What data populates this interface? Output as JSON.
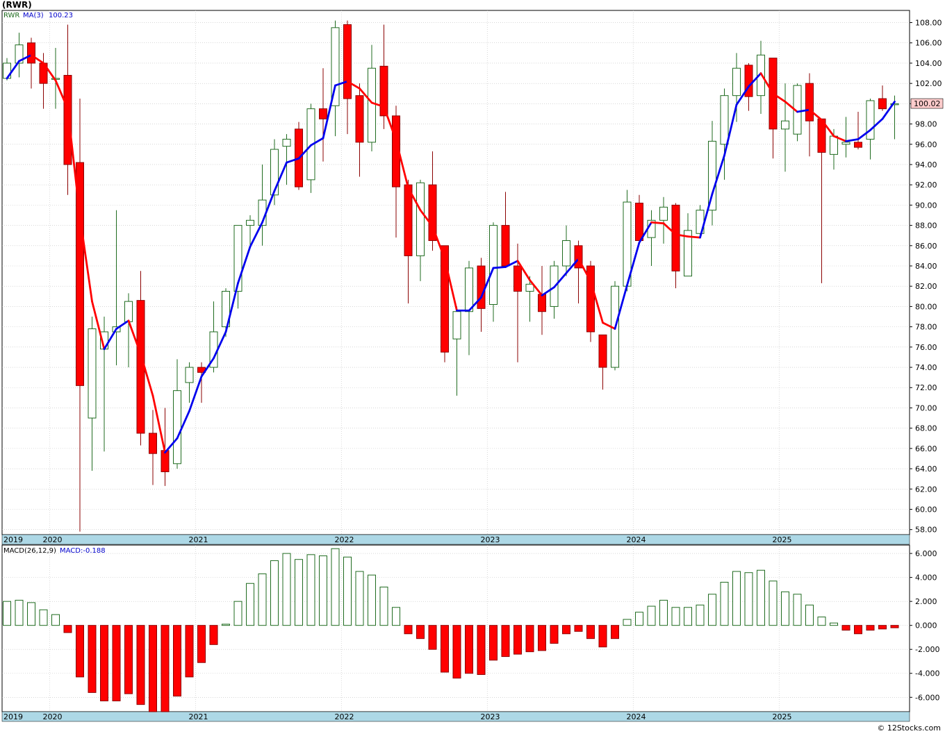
{
  "header": {
    "symbol": "(RWR)"
  },
  "footer": {
    "credit": "© 12Stocks.com"
  },
  "colors": {
    "up": "#1f6b1f",
    "down": "#ff0000",
    "ma_down": "#ff0000",
    "ma_up": "#0000ee",
    "axis_band": "#add8e6",
    "grid": "#bfbfbf",
    "last_price_bg": "#ffcccc"
  },
  "chart_data": [
    {
      "type": "candlestick",
      "legend": {
        "symbol": "RWR",
        "ma_label": "MA(3)",
        "ma_value": "100.23"
      },
      "last_price_label": "100.02",
      "ylim": [
        57.5,
        109.2
      ],
      "yticks": [
        "58.00",
        "60.00",
        "62.00",
        "64.00",
        "66.00",
        "68.00",
        "70.00",
        "72.00",
        "74.00",
        "76.00",
        "78.00",
        "80.00",
        "82.00",
        "84.00",
        "86.00",
        "88.00",
        "90.00",
        "92.00",
        "94.00",
        "96.00",
        "98.00",
        "100.00",
        "102.00",
        "104.00",
        "106.00",
        "108.00"
      ],
      "year_labels": [
        "2019",
        "2020",
        "2021",
        "2022",
        "2023",
        "2024",
        "2025"
      ],
      "year_label_index": [
        -0.5,
        3.4,
        15.4,
        27.4,
        39.4,
        51.4,
        63.4
      ],
      "year_lines_index": [
        3.5,
        15.5,
        27.5,
        39.5,
        51.5,
        63.5
      ],
      "grid": true,
      "candles": [
        {
          "o": 102.5,
          "h": 104.5,
          "l": 102.3,
          "c": 104.0
        },
        {
          "o": 104.0,
          "h": 107.0,
          "l": 102.6,
          "c": 105.8
        },
        {
          "o": 106.0,
          "h": 106.5,
          "l": 101.5,
          "c": 104.0
        },
        {
          "o": 104.0,
          "h": 105.0,
          "l": 99.5,
          "c": 102.0
        },
        {
          "o": 102.5,
          "h": 105.5,
          "l": 99.5,
          "c": 102.5
        },
        {
          "o": 102.8,
          "h": 107.8,
          "l": 91.0,
          "c": 94.0
        },
        {
          "o": 94.2,
          "h": 100.5,
          "l": 57.8,
          "c": 72.2
        },
        {
          "o": 69.0,
          "h": 79.0,
          "l": 63.8,
          "c": 77.8
        },
        {
          "o": 75.8,
          "h": 79.0,
          "l": 65.7,
          "c": 77.5
        },
        {
          "o": 77.5,
          "h": 89.5,
          "l": 74.2,
          "c": 78.0
        },
        {
          "o": 78.5,
          "h": 81.3,
          "l": 74.0,
          "c": 80.5
        },
        {
          "o": 80.6,
          "h": 83.5,
          "l": 66.3,
          "c": 67.5
        },
        {
          "o": 67.5,
          "h": 69.8,
          "l": 62.4,
          "c": 65.5
        },
        {
          "o": 65.8,
          "h": 70.0,
          "l": 62.3,
          "c": 63.7
        },
        {
          "o": 64.5,
          "h": 74.8,
          "l": 64.0,
          "c": 71.7
        },
        {
          "o": 72.5,
          "h": 74.5,
          "l": 70.5,
          "c": 74.0
        },
        {
          "o": 74.0,
          "h": 74.5,
          "l": 70.5,
          "c": 73.5
        },
        {
          "o": 74.0,
          "h": 80.5,
          "l": 73.5,
          "c": 77.5
        },
        {
          "o": 78.0,
          "h": 81.8,
          "l": 77.0,
          "c": 81.5
        },
        {
          "o": 81.5,
          "h": 88.0,
          "l": 79.8,
          "c": 88.0
        },
        {
          "o": 88.0,
          "h": 89.0,
          "l": 86.0,
          "c": 88.5
        },
        {
          "o": 88.0,
          "h": 94.0,
          "l": 86.0,
          "c": 90.5
        },
        {
          "o": 91.0,
          "h": 96.5,
          "l": 90.0,
          "c": 95.5
        },
        {
          "o": 95.8,
          "h": 97.0,
          "l": 92.0,
          "c": 96.5
        },
        {
          "o": 97.5,
          "h": 98.2,
          "l": 91.5,
          "c": 91.8
        },
        {
          "o": 92.5,
          "h": 100.0,
          "l": 91.2,
          "c": 99.5
        },
        {
          "o": 99.5,
          "h": 103.5,
          "l": 94.3,
          "c": 98.5
        },
        {
          "o": 99.8,
          "h": 108.2,
          "l": 96.8,
          "c": 107.5
        },
        {
          "o": 107.8,
          "h": 108.2,
          "l": 97.0,
          "c": 100.5
        },
        {
          "o": 100.8,
          "h": 102.0,
          "l": 92.8,
          "c": 96.2
        },
        {
          "o": 96.2,
          "h": 105.8,
          "l": 95.3,
          "c": 103.5
        },
        {
          "o": 103.7,
          "h": 107.8,
          "l": 97.5,
          "c": 98.8
        },
        {
          "o": 98.8,
          "h": 99.8,
          "l": 86.8,
          "c": 91.8
        },
        {
          "o": 92.0,
          "h": 92.5,
          "l": 80.3,
          "c": 85.0
        },
        {
          "o": 85.0,
          "h": 92.5,
          "l": 82.5,
          "c": 92.2
        },
        {
          "o": 92.0,
          "h": 95.3,
          "l": 85.5,
          "c": 86.5
        },
        {
          "o": 86.0,
          "h": 86.0,
          "l": 74.5,
          "c": 75.5
        },
        {
          "o": 76.8,
          "h": 80.0,
          "l": 71.2,
          "c": 79.5
        },
        {
          "o": 79.5,
          "h": 84.5,
          "l": 75.2,
          "c": 83.8
        },
        {
          "o": 84.0,
          "h": 84.8,
          "l": 77.5,
          "c": 79.8
        },
        {
          "o": 80.2,
          "h": 88.3,
          "l": 78.5,
          "c": 88.0
        },
        {
          "o": 88.0,
          "h": 91.3,
          "l": 83.8,
          "c": 84.0
        },
        {
          "o": 84.0,
          "h": 86.2,
          "l": 74.5,
          "c": 81.5
        },
        {
          "o": 81.5,
          "h": 83.0,
          "l": 78.5,
          "c": 82.2
        },
        {
          "o": 81.2,
          "h": 84.0,
          "l": 77.2,
          "c": 79.5
        },
        {
          "o": 80.0,
          "h": 84.5,
          "l": 78.8,
          "c": 84.0
        },
        {
          "o": 84.0,
          "h": 88.0,
          "l": 83.0,
          "c": 86.5
        },
        {
          "o": 86.0,
          "h": 86.5,
          "l": 80.3,
          "c": 83.8
        },
        {
          "o": 84.0,
          "h": 84.5,
          "l": 76.5,
          "c": 77.5
        },
        {
          "o": 77.2,
          "h": 77.2,
          "l": 71.8,
          "c": 74.0
        },
        {
          "o": 74.0,
          "h": 82.5,
          "l": 73.7,
          "c": 82.0
        },
        {
          "o": 82.0,
          "h": 91.5,
          "l": 81.5,
          "c": 90.3
        },
        {
          "o": 90.2,
          "h": 91.0,
          "l": 86.5,
          "c": 86.5
        },
        {
          "o": 86.8,
          "h": 89.5,
          "l": 84.0,
          "c": 88.5
        },
        {
          "o": 88.5,
          "h": 90.8,
          "l": 86.2,
          "c": 89.8
        },
        {
          "o": 90.0,
          "h": 90.2,
          "l": 81.8,
          "c": 83.5
        },
        {
          "o": 83.0,
          "h": 89.2,
          "l": 83.0,
          "c": 87.5
        },
        {
          "o": 87.2,
          "h": 90.0,
          "l": 86.8,
          "c": 89.5
        },
        {
          "o": 89.5,
          "h": 98.3,
          "l": 88.0,
          "c": 96.3
        },
        {
          "o": 96.0,
          "h": 101.5,
          "l": 92.5,
          "c": 100.8
        },
        {
          "o": 100.8,
          "h": 105.0,
          "l": 98.2,
          "c": 103.5
        },
        {
          "o": 103.8,
          "h": 104.0,
          "l": 99.3,
          "c": 100.7
        },
        {
          "o": 100.8,
          "h": 106.2,
          "l": 99.0,
          "c": 104.8
        },
        {
          "o": 104.5,
          "h": 104.5,
          "l": 94.6,
          "c": 97.5
        },
        {
          "o": 97.5,
          "h": 102.0,
          "l": 93.3,
          "c": 98.3
        },
        {
          "o": 97.0,
          "h": 102.0,
          "l": 96.3,
          "c": 101.8
        },
        {
          "o": 102.0,
          "h": 103.0,
          "l": 94.8,
          "c": 98.3
        },
        {
          "o": 98.5,
          "h": 98.5,
          "l": 82.3,
          "c": 95.2
        },
        {
          "o": 95.0,
          "h": 97.5,
          "l": 93.5,
          "c": 96.8
        },
        {
          "o": 96.0,
          "h": 98.7,
          "l": 94.7,
          "c": 96.2
        },
        {
          "o": 96.2,
          "h": 99.2,
          "l": 95.5,
          "c": 95.7
        },
        {
          "o": 96.5,
          "h": 100.5,
          "l": 94.5,
          "c": 100.3
        },
        {
          "o": 100.5,
          "h": 101.8,
          "l": 99.3,
          "c": 99.5
        },
        {
          "o": 100.0,
          "h": 100.8,
          "l": 96.5,
          "c": 100.0
        }
      ],
      "ma3": [
        102.5,
        104.2,
        104.8,
        104.0,
        102.3,
        99.5,
        88.9,
        80.5,
        75.8,
        77.8,
        78.6,
        75.3,
        71.2,
        65.6,
        67.0,
        69.7,
        73.1,
        74.9,
        77.5,
        82.3,
        85.9,
        88.3,
        91.4,
        94.2,
        94.6,
        95.9,
        96.6,
        101.8,
        102.2,
        101.5,
        100.1,
        99.7,
        96.4,
        91.7,
        89.5,
        87.9,
        84.7,
        79.6,
        79.6,
        80.9,
        83.8,
        83.9,
        84.5,
        82.6,
        81.1,
        81.9,
        83.3,
        84.7,
        82.5,
        78.4,
        77.8,
        82.1,
        86.3,
        88.3,
        88.2,
        87.1,
        86.9,
        86.8,
        91.1,
        94.9,
        99.9,
        101.7,
        103.0,
        101.0,
        100.2,
        99.2,
        99.4,
        98.4,
        96.8,
        96.3,
        96.5,
        97.4,
        98.5,
        100.2
      ]
    },
    {
      "type": "bar",
      "legend": {
        "label": "MACD(26,12,9)",
        "value_label": "MACD:-0.188"
      },
      "ylim": [
        -7.2,
        6.7
      ],
      "yticks": [
        "6.000",
        "4.000",
        "2.000",
        "0.000",
        "-2.000",
        "-4.000",
        "-6.000"
      ],
      "year_labels": [
        "2019",
        "2020",
        "2021",
        "2022",
        "2023",
        "2024",
        "2025"
      ],
      "values": [
        2.0,
        2.1,
        1.9,
        1.3,
        0.9,
        -0.6,
        -4.3,
        -5.6,
        -6.3,
        -6.3,
        -5.7,
        -6.6,
        -7.2,
        -7.2,
        -5.9,
        -4.3,
        -3.1,
        -1.6,
        0.1,
        2.0,
        3.5,
        4.3,
        5.4,
        6.0,
        5.5,
        5.9,
        5.8,
        6.4,
        5.7,
        4.5,
        4.2,
        3.2,
        1.5,
        -0.7,
        -1.1,
        -2.0,
        -3.9,
        -4.4,
        -4.0,
        -4.1,
        -2.9,
        -2.6,
        -2.4,
        -2.2,
        -2.1,
        -1.5,
        -0.7,
        -0.5,
        -1.1,
        -1.8,
        -1.1,
        0.5,
        1.1,
        1.6,
        2.1,
        1.5,
        1.5,
        1.7,
        2.6,
        3.6,
        4.5,
        4.4,
        4.6,
        3.7,
        2.8,
        2.6,
        1.7,
        0.7,
        0.2,
        -0.4,
        -0.7,
        -0.4,
        -0.3,
        -0.2
      ]
    }
  ]
}
